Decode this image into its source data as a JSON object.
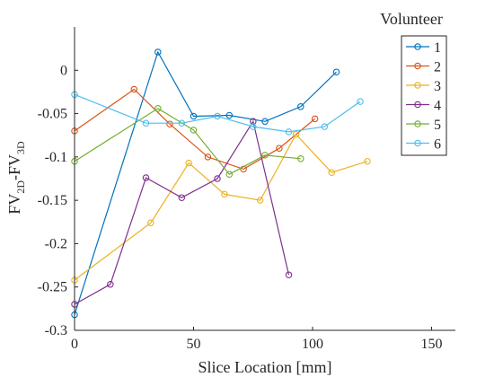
{
  "chart_data": {
    "type": "line",
    "xlabel": "Slice Location [mm]",
    "ylabel": {
      "base": "FV",
      "sub1": "2D",
      "mid": "-FV",
      "sub2": "3D"
    },
    "xlim": [
      0,
      160
    ],
    "ylim": [
      -0.3,
      0.05
    ],
    "xticks": [
      0,
      50,
      100,
      150
    ],
    "yticks": [
      -0.3,
      -0.25,
      -0.2,
      -0.15,
      -0.1,
      -0.05,
      0
    ],
    "ytick_labels": [
      "-0.3",
      "-0.25",
      "-0.2",
      "-0.15",
      "-0.1",
      "-0.05",
      "0"
    ],
    "legend_title": "Volunteer",
    "legend_position": "top-right",
    "series": [
      {
        "name": "1",
        "color": "#0072BD",
        "x": [
          0,
          35,
          50,
          65,
          80,
          95,
          110
        ],
        "y": [
          -0.282,
          0.021,
          -0.053,
          -0.052,
          -0.059,
          -0.042,
          -0.002
        ]
      },
      {
        "name": "2",
        "color": "#D95319",
        "x": [
          0,
          25,
          40,
          56,
          71,
          86,
          101
        ],
        "y": [
          -0.07,
          -0.022,
          -0.062,
          -0.1,
          -0.114,
          -0.09,
          -0.056
        ]
      },
      {
        "name": "3",
        "color": "#EDB120",
        "x": [
          0,
          32,
          48,
          63,
          78,
          93,
          108,
          123
        ],
        "y": [
          -0.242,
          -0.176,
          -0.107,
          -0.143,
          -0.15,
          -0.074,
          -0.118,
          -0.105
        ]
      },
      {
        "name": "4",
        "color": "#7E2F8E",
        "x": [
          0,
          15,
          30,
          45,
          60,
          75,
          90
        ],
        "y": [
          -0.27,
          -0.247,
          -0.124,
          -0.147,
          -0.125,
          -0.059,
          -0.236
        ]
      },
      {
        "name": "5",
        "color": "#77AC30",
        "x": [
          0,
          35,
          50,
          65,
          80,
          95
        ],
        "y": [
          -0.105,
          -0.044,
          -0.069,
          -0.12,
          -0.098,
          -0.102
        ]
      },
      {
        "name": "6",
        "color": "#4DBEEE",
        "x": [
          0,
          30,
          45,
          60,
          75,
          90,
          105,
          120
        ],
        "y": [
          -0.028,
          -0.061,
          -0.061,
          -0.053,
          -0.065,
          -0.071,
          -0.065,
          -0.036
        ]
      }
    ]
  }
}
